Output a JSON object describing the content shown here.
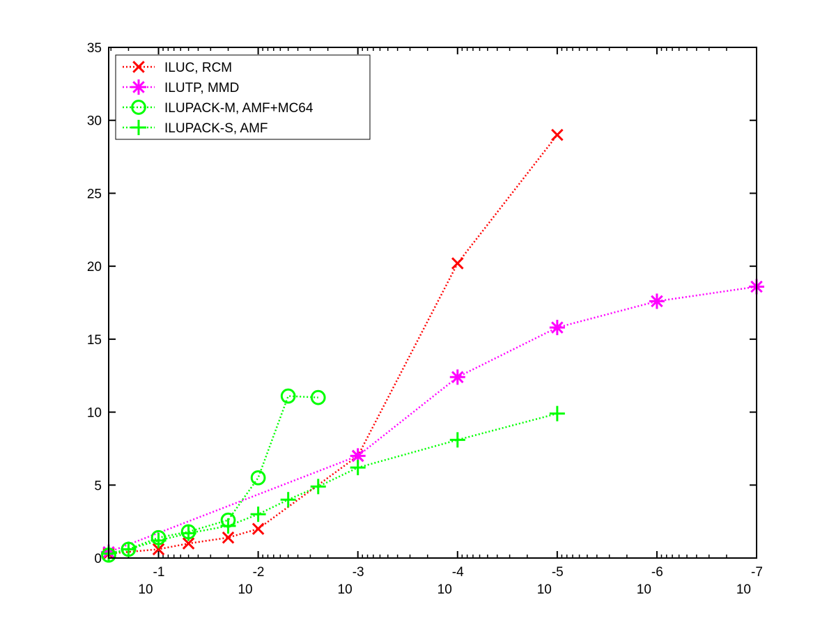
{
  "chart_data": {
    "type": "line",
    "title": "",
    "xlabel": "",
    "ylabel": "",
    "xscale": "log10-reversed",
    "xlim": [
      0.3162,
      1e-07
    ],
    "ylim": [
      0,
      35
    ],
    "grid": false,
    "legend_position": "top-left",
    "x_ticks": [
      {
        "value": 0.1,
        "base": "10",
        "exp": "-1"
      },
      {
        "value": 0.01,
        "base": "10",
        "exp": "-2"
      },
      {
        "value": 0.001,
        "base": "10",
        "exp": "-3"
      },
      {
        "value": 0.0001,
        "base": "10",
        "exp": "-4"
      },
      {
        "value": 1e-05,
        "base": "10",
        "exp": "-5"
      },
      {
        "value": 1e-06,
        "base": "10",
        "exp": "-6"
      },
      {
        "value": 1e-07,
        "base": "10",
        "exp": "-7"
      }
    ],
    "y_ticks": [
      0,
      5,
      10,
      15,
      20,
      25,
      30,
      35
    ],
    "series": [
      {
        "name": "ILUC, RCM",
        "color": "#ff0000",
        "marker": "x",
        "x": [
          0.3162,
          0.1,
          0.05,
          0.02,
          0.01,
          0.001,
          0.0001,
          1e-05
        ],
        "y": [
          0.3,
          0.6,
          1.0,
          1.4,
          2.0,
          7.0,
          20.2,
          29.0
        ]
      },
      {
        "name": "ILUTP, MMD",
        "color": "#ff00ff",
        "marker": "asterisk",
        "x": [
          0.3162,
          0.001,
          0.0001,
          1e-05,
          1e-06,
          1e-07
        ],
        "y": [
          0.4,
          7.0,
          12.4,
          15.8,
          17.6,
          18.6
        ]
      },
      {
        "name": "ILUPACK-M, AMF+MC64",
        "color": "#00ff00",
        "marker": "circle",
        "x": [
          0.3162,
          0.2,
          0.1,
          0.05,
          0.02,
          0.01,
          0.005,
          0.0025
        ],
        "y": [
          0.2,
          0.6,
          1.4,
          1.8,
          2.6,
          5.5,
          11.1,
          11.0
        ]
      },
      {
        "name": "ILUPACK-S, AMF",
        "color": "#00ff00",
        "marker": "plus",
        "x": [
          0.3162,
          0.2,
          0.1,
          0.05,
          0.02,
          0.01,
          0.005,
          0.0025,
          0.001,
          0.0001,
          1e-05
        ],
        "y": [
          0.3,
          0.6,
          1.2,
          1.7,
          2.2,
          3.0,
          4.0,
          4.9,
          6.2,
          8.1,
          9.9
        ]
      }
    ]
  }
}
